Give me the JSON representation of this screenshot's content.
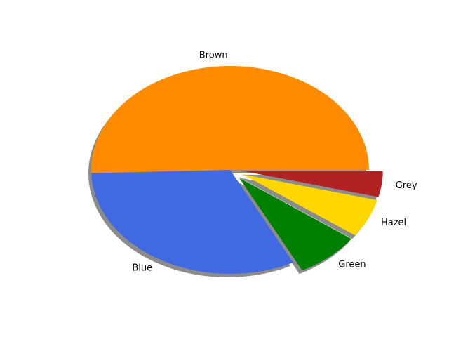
{
  "chart_data": {
    "type": "pie",
    "title": "",
    "categories": [
      "Brown",
      "Blue",
      "Green",
      "Hazel",
      "Grey"
    ],
    "values": [
      50.5,
      32.0,
      7.5,
      6.0,
      4.0
    ],
    "colors": [
      "#ff8c00",
      "#4169e1",
      "#008000",
      "#ffd700",
      "#b22222"
    ],
    "exploded": [
      false,
      false,
      true,
      true,
      true
    ],
    "start_angle_deg": 0,
    "direction": "counterclockwise",
    "shadow": true,
    "legend": "none",
    "grid": false
  }
}
